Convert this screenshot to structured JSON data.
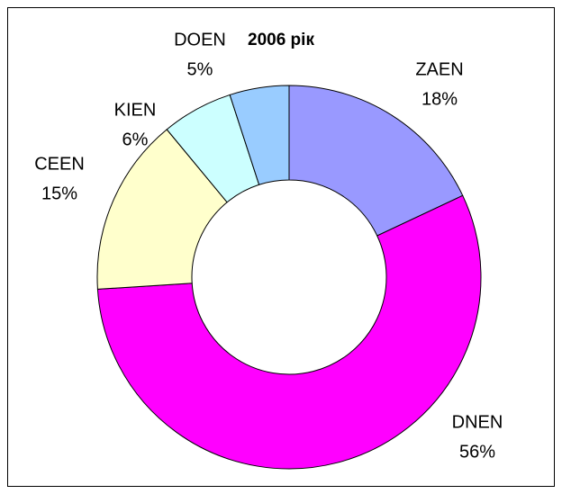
{
  "chart_data": {
    "type": "donut",
    "title": "2006 рік",
    "categories": [
      "ZAEN",
      "DNEN",
      "CEEN",
      "KIEN",
      "DOEN"
    ],
    "values": [
      18,
      56,
      15,
      6,
      5
    ],
    "value_labels": [
      "18%",
      "56%",
      "15%",
      "6%",
      "5%"
    ],
    "colors": [
      "#9999ff",
      "#ff00ff",
      "#ffffcc",
      "#ccffff",
      "#99ccff"
    ]
  }
}
